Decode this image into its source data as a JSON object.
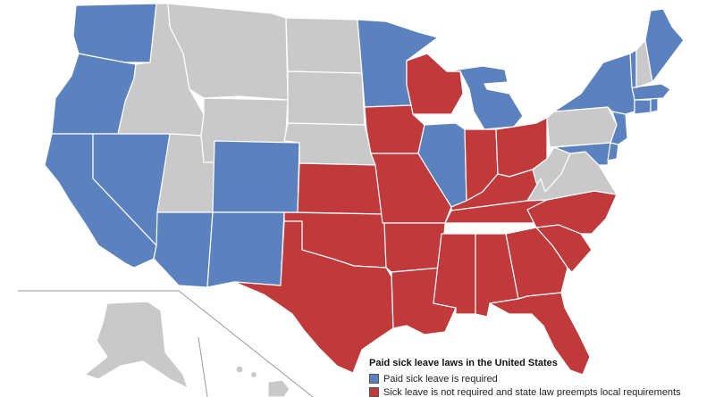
{
  "legend": {
    "title": "Paid sick leave laws in the United States",
    "entries": [
      {
        "label": "Paid sick leave is required",
        "color": "#5b82bf"
      },
      {
        "label": "Sick leave is not required and state law preempts local requirements",
        "color": "#c0393b"
      }
    ]
  },
  "colors": {
    "required": "#5b82bf",
    "preempted": "#c0393b",
    "other": "#c9c9c9",
    "border": "#ffffff"
  },
  "states": {
    "required": [
      "WA",
      "OR",
      "CA",
      "NV",
      "AZ",
      "NM",
      "CO",
      "MN",
      "MI",
      "IL",
      "NY",
      "VT",
      "ME",
      "MA",
      "RI",
      "CT",
      "NJ",
      "DE",
      "MD"
    ],
    "preempted": [
      "WI",
      "IA",
      "MO",
      "KS",
      "OK",
      "TX",
      "AR",
      "LA",
      "MS",
      "AL",
      "GA",
      "FL",
      "SC",
      "NC",
      "TN",
      "KY",
      "IN",
      "OH"
    ],
    "other": [
      "ID",
      "MT",
      "WY",
      "UT",
      "ND",
      "SD",
      "NE",
      "PA",
      "WV",
      "VA",
      "NH",
      "AK",
      "HI"
    ]
  }
}
